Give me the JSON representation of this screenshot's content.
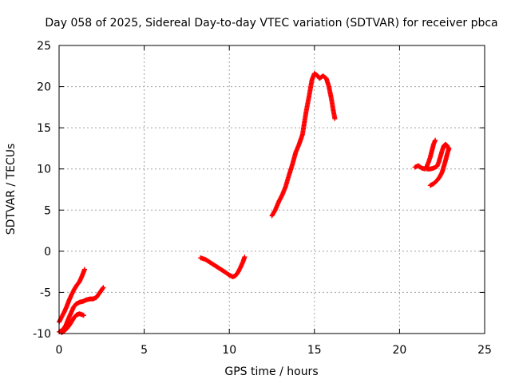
{
  "chart_data": {
    "type": "scatter",
    "title": "Day 058 of 2025, Sidereal Day-to-day VTEC variation (SDTVAR) for receiver pbca",
    "xlabel": "GPS time / hours",
    "ylabel": "SDTVAR / TECUs",
    "xlim": [
      0,
      25
    ],
    "ylim": [
      -10,
      25
    ],
    "x_ticks": [
      0,
      5,
      10,
      15,
      20,
      25
    ],
    "y_ticks": [
      -10,
      -5,
      0,
      5,
      10,
      15,
      20,
      25
    ],
    "x_tick_labels": [
      "0",
      "5",
      "10",
      "15",
      "20",
      "25"
    ],
    "y_tick_labels": [
      "-10",
      "-5",
      "0",
      "5",
      "10",
      "15",
      "20",
      "25"
    ],
    "grid": true,
    "legend": "none",
    "marker": "plus",
    "color": "#ff0000",
    "series": [
      {
        "x": [
          0.0,
          0.15,
          0.3,
          0.45,
          0.6,
          0.75,
          0.9,
          1.05,
          1.2,
          1.35,
          1.5
        ],
        "y": [
          -8.6,
          -8.0,
          -7.4,
          -6.7,
          -5.9,
          -5.2,
          -4.6,
          -4.1,
          -3.7,
          -3.0,
          -2.2
        ]
      },
      {
        "x": [
          0.0,
          0.2,
          0.4,
          0.55,
          0.7,
          0.85,
          1.0,
          1.2,
          1.4,
          1.6,
          1.8,
          2.0,
          2.2,
          2.4,
          2.6
        ],
        "y": [
          -9.8,
          -9.6,
          -9.0,
          -8.2,
          -7.5,
          -6.8,
          -6.4,
          -6.2,
          -6.1,
          -5.9,
          -5.8,
          -5.8,
          -5.6,
          -5.0,
          -4.4
        ]
      },
      {
        "x": [
          0.15,
          0.3,
          0.45,
          0.6,
          0.75,
          0.9,
          1.05,
          1.2,
          1.35,
          1.45
        ],
        "y": [
          -9.9,
          -9.7,
          -9.4,
          -9.0,
          -8.5,
          -8.0,
          -7.7,
          -7.6,
          -7.7,
          -7.8
        ]
      },
      {
        "x": [
          8.3,
          8.6,
          8.9,
          9.2,
          9.5,
          9.8,
          10.0,
          10.2,
          10.35,
          10.5,
          10.65,
          10.8,
          10.9
        ],
        "y": [
          -0.8,
          -1.0,
          -1.4,
          -1.8,
          -2.2,
          -2.6,
          -2.9,
          -3.1,
          -3.0,
          -2.6,
          -2.0,
          -1.3,
          -0.7
        ]
      },
      {
        "x": [
          12.5,
          12.7,
          12.9,
          13.1,
          13.3,
          13.5,
          13.7,
          13.9,
          14.1,
          14.3,
          14.5,
          14.7,
          14.85,
          15.0,
          15.15,
          15.3,
          15.5,
          15.7,
          15.85,
          16.0,
          16.1,
          16.2
        ],
        "y": [
          4.3,
          5.0,
          6.0,
          6.8,
          7.8,
          9.2,
          10.5,
          12.0,
          13.0,
          14.2,
          16.8,
          19.0,
          20.8,
          21.6,
          21.4,
          21.0,
          21.3,
          21.0,
          20.0,
          18.5,
          17.2,
          16.1
        ]
      },
      {
        "x": [
          20.9,
          21.1,
          21.3,
          21.5,
          21.6,
          21.7,
          21.8,
          21.9,
          22.0,
          22.1
        ],
        "y": [
          10.2,
          10.4,
          10.1,
          10.0,
          10.3,
          10.8,
          11.4,
          12.2,
          13.0,
          13.5
        ]
      },
      {
        "x": [
          21.6,
          21.8,
          22.0,
          22.2,
          22.3,
          22.4,
          22.5,
          22.6,
          22.7,
          22.8,
          22.9
        ],
        "y": [
          10.0,
          10.0,
          10.1,
          10.3,
          10.8,
          11.5,
          12.2,
          12.8,
          13.0,
          12.8,
          12.4
        ]
      },
      {
        "x": [
          21.8,
          22.0,
          22.2,
          22.35,
          22.5,
          22.6,
          22.7,
          22.8,
          22.9
        ],
        "y": [
          8.0,
          8.2,
          8.6,
          9.0,
          9.6,
          10.3,
          11.0,
          11.8,
          12.5
        ]
      }
    ]
  }
}
